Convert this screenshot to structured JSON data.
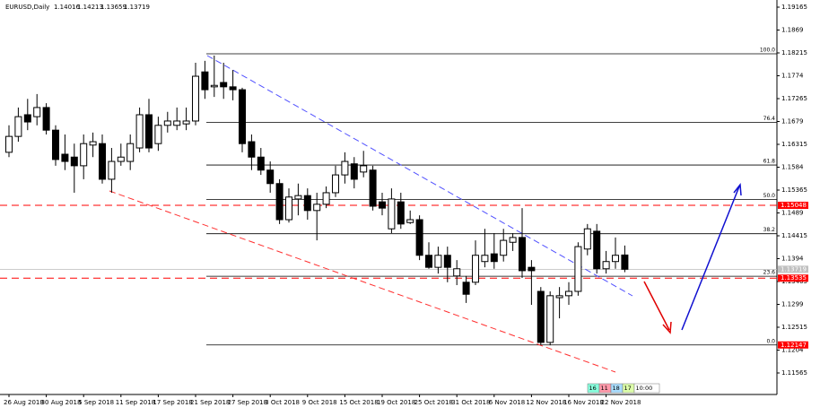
{
  "chart_data": {
    "type": "candlestick",
    "symbol": "EURUSD,Daily",
    "categories": [
      "26 Aug 2018",
      null,
      null,
      null,
      "30 Aug 2018",
      null,
      null,
      null,
      "5 Sep 2018",
      null,
      null,
      null,
      "11 Sep 2018",
      null,
      null,
      null,
      "17 Sep 2018",
      null,
      null,
      null,
      "21 Sep 2018",
      null,
      null,
      null,
      "27 Sep 2018",
      null,
      null,
      null,
      "3 Oct 2018",
      null,
      null,
      null,
      "9 Oct 2018",
      null,
      null,
      null,
      "15 Oct 2018",
      null,
      null,
      null,
      "19 Oct 2018",
      null,
      null,
      null,
      "25 Oct 2018",
      null,
      null,
      null,
      "31 Oct 2018",
      null,
      null,
      null,
      "6 Nov 2018",
      null,
      null,
      null,
      "12 Nov 2018",
      null,
      null,
      null,
      "16 Nov 2018",
      null,
      null,
      null,
      "22 Nov 2018",
      null,
      null
    ],
    "open": [
      1.1615,
      1.1648,
      1.1693,
      1.1689,
      1.1708,
      1.1661,
      1.1611,
      1.1605,
      1.1587,
      1.163,
      1.1633,
      1.1559,
      1.1596,
      1.1596,
      1.1624,
      1.1693,
      1.1633,
      1.1671,
      1.1671,
      1.1674,
      1.168,
      1.1782,
      1.1751,
      1.176,
      1.1751,
      1.1745,
      1.1637,
      1.1605,
      1.1578,
      1.155,
      1.1475,
      1.1518,
      1.1525,
      1.1494,
      1.1507,
      1.1531,
      1.1568,
      1.1591,
      1.1574,
      1.1578,
      1.1512,
      1.1456,
      1.1512,
      1.1469,
      1.1475,
      1.1401,
      1.1376,
      1.1401,
      1.1358,
      1.1345,
      1.1345,
      1.1388,
      1.1404,
      1.1401,
      1.1428,
      1.1438,
      1.1376,
      1.1326,
      1.122,
      1.1313,
      1.1317,
      1.1326,
      1.1414,
      1.1451,
      1.1373,
      1.1388,
      1.14016
    ],
    "high": [
      1.1671,
      1.1708,
      1.1726,
      1.1736,
      1.1717,
      1.1671,
      1.1652,
      1.1633,
      1.1652,
      1.1656,
      1.1652,
      1.1624,
      1.1633,
      1.1652,
      1.1708,
      1.1726,
      1.1689,
      1.1699,
      1.1708,
      1.1708,
      1.1801,
      1.1805,
      1.1816,
      1.1801,
      1.1786,
      1.1749,
      1.1652,
      1.1624,
      1.1596,
      1.1559,
      1.154,
      1.155,
      1.154,
      1.1531,
      1.1544,
      1.1587,
      1.1615,
      1.1605,
      1.1618,
      1.1587,
      1.1531,
      1.154,
      1.1531,
      1.1494,
      1.1484,
      1.1428,
      1.1419,
      1.1419,
      1.1391,
      1.1358,
      1.1432,
      1.1456,
      1.1447,
      1.1456,
      1.1447,
      1.1499,
      1.1391,
      1.1335,
      1.1326,
      1.1335,
      1.1345,
      1.1428,
      1.1466,
      1.1466,
      1.141,
      1.1438,
      1.14213
    ],
    "low": [
      1.1605,
      1.1637,
      1.1661,
      1.1671,
      1.1652,
      1.1587,
      1.1578,
      1.1531,
      1.1559,
      1.1605,
      1.155,
      1.1531,
      1.1587,
      1.1578,
      1.1615,
      1.1615,
      1.1618,
      1.1656,
      1.1661,
      1.1661,
      1.1671,
      1.1726,
      1.173,
      1.1726,
      1.1723,
      1.1615,
      1.1578,
      1.1568,
      1.1531,
      1.1466,
      1.1469,
      1.1484,
      1.1475,
      1.1432,
      1.1499,
      1.1522,
      1.155,
      1.154,
      1.1563,
      1.1494,
      1.1484,
      1.1447,
      1.1456,
      1.1466,
      1.1391,
      1.1373,
      1.1363,
      1.1345,
      1.1339,
      1.1302,
      1.1339,
      1.1376,
      1.1373,
      1.1388,
      1.141,
      1.1354,
      1.1298,
      1.1214,
      1.1214,
      1.127,
      1.1298,
      1.1317,
      1.1401,
      1.1363,
      1.1363,
      1.1373,
      1.13659
    ],
    "close": [
      1.1648,
      1.1689,
      1.1678,
      1.1708,
      1.1661,
      1.16,
      1.1596,
      1.1587,
      1.1633,
      1.1637,
      1.1559,
      1.1596,
      1.1605,
      1.1633,
      1.1693,
      1.1624,
      1.1671,
      1.168,
      1.168,
      1.168,
      1.1773,
      1.1745,
      1.1754,
      1.1751,
      1.1745,
      1.1633,
      1.1605,
      1.1578,
      1.155,
      1.1475,
      1.1522,
      1.1525,
      1.1494,
      1.1507,
      1.1531,
      1.1568,
      1.1596,
      1.1559,
      1.1587,
      1.1503,
      1.1499,
      1.1518,
      1.1466,
      1.1475,
      1.1401,
      1.1376,
      1.1401,
      1.1376,
      1.1373,
      1.132,
      1.1401,
      1.1401,
      1.1388,
      1.1432,
      1.1438,
      1.1369,
      1.1369,
      1.122,
      1.1317,
      1.1317,
      1.1326,
      1.1419,
      1.1456,
      1.1373,
      1.1388,
      1.1401,
      1.13719
    ],
    "ylim": [
      1.11118,
      1.19314
    ],
    "yticks": [
      1.11565,
      1.1204,
      1.12515,
      1.1299,
      1.13465,
      1.1394,
      1.14415,
      1.1489,
      1.15365,
      1.1584,
      1.16315,
      1.1679,
      1.17265,
      1.1774,
      1.18215,
      1.1869,
      1.19165
    ],
    "lines": [
      {
        "value": 1.15048,
        "color": "#ff0000"
      },
      {
        "value": 1.13535,
        "color": "#ff0000"
      }
    ],
    "fibo": {
      "high": 1.18196,
      "low": 1.12147,
      "levels": [
        {
          "value": 100,
          "label": "100.0"
        },
        76.4,
        61.8,
        {
          "value": 50,
          "label": "50.0"
        },
        38.2,
        23.6,
        {
          "value": 0,
          "label": "0.0"
        }
      ]
    },
    "timer": [
      "16",
      "11",
      "18",
      "17",
      "10:00"
    ]
  }
}
